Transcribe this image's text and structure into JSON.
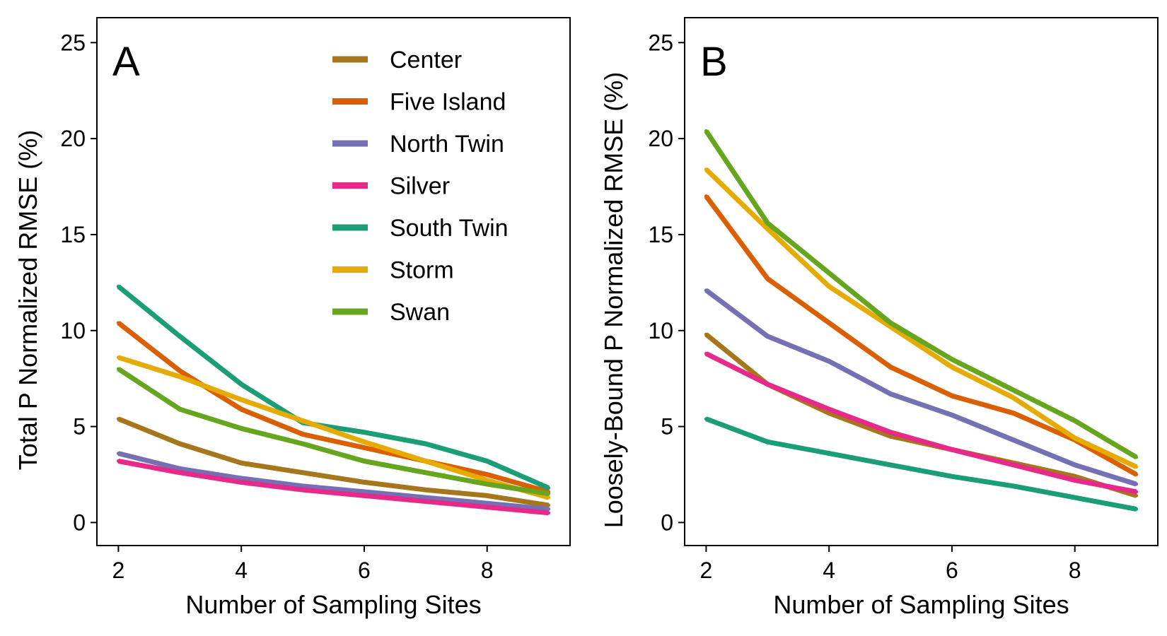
{
  "figure": {
    "legend_panel": "A",
    "legend_position": "top-right",
    "series_colors": {
      "Center": "#A6761D",
      "Five Island": "#D95F02",
      "North Twin": "#7570B3",
      "Silver": "#E7298A",
      "South Twin": "#1B9E77",
      "Storm": "#E6AB02",
      "Swan": "#66A61E"
    }
  },
  "chart_data": [
    {
      "type": "line",
      "panel_label": "A",
      "xlabel": "Number of Sampling Sites",
      "ylabel": "Total P Normalized RMSE (%)",
      "xlim": [
        1.65,
        9.35
      ],
      "ylim": [
        -1.2,
        26.3
      ],
      "xticks": [
        2,
        4,
        6,
        8
      ],
      "yticks": [
        0,
        5,
        10,
        15,
        20,
        25
      ],
      "grid": false,
      "x": [
        2,
        3,
        4,
        5,
        6,
        7,
        8,
        9
      ],
      "series": [
        {
          "name": "Center",
          "values": [
            5.4,
            4.1,
            3.1,
            2.6,
            2.1,
            1.7,
            1.4,
            0.9
          ]
        },
        {
          "name": "Five Island",
          "values": [
            10.4,
            7.9,
            5.9,
            4.6,
            3.9,
            3.2,
            2.5,
            1.6
          ]
        },
        {
          "name": "North Twin",
          "values": [
            3.6,
            2.8,
            2.3,
            1.9,
            1.6,
            1.3,
            1.0,
            0.7
          ]
        },
        {
          "name": "Silver",
          "values": [
            3.2,
            2.6,
            2.1,
            1.7,
            1.4,
            1.1,
            0.8,
            0.5
          ]
        },
        {
          "name": "South Twin",
          "values": [
            12.3,
            9.7,
            7.2,
            5.2,
            4.7,
            4.1,
            3.2,
            1.8
          ]
        },
        {
          "name": "Storm",
          "values": [
            8.6,
            7.6,
            6.4,
            5.3,
            4.2,
            3.2,
            2.2,
            1.3
          ]
        },
        {
          "name": "Swan",
          "values": [
            8.0,
            5.9,
            4.9,
            4.1,
            3.2,
            2.6,
            2.0,
            1.5
          ]
        }
      ]
    },
    {
      "type": "line",
      "panel_label": "B",
      "xlabel": "Number of Sampling Sites",
      "ylabel": "Loosely-Bound P Normalized RMSE (%)",
      "xlim": [
        1.65,
        9.35
      ],
      "ylim": [
        -1.2,
        26.3
      ],
      "xticks": [
        2,
        4,
        6,
        8
      ],
      "yticks": [
        0,
        5,
        10,
        15,
        20,
        25
      ],
      "grid": false,
      "x": [
        2,
        3,
        4,
        5,
        6,
        7,
        8,
        9
      ],
      "series": [
        {
          "name": "Center",
          "values": [
            9.8,
            7.2,
            5.7,
            4.5,
            3.8,
            3.1,
            2.4,
            1.4
          ]
        },
        {
          "name": "Five Island",
          "values": [
            17.0,
            12.7,
            10.4,
            8.1,
            6.6,
            5.7,
            4.3,
            2.5
          ]
        },
        {
          "name": "North Twin",
          "values": [
            12.1,
            9.7,
            8.4,
            6.7,
            5.6,
            4.3,
            3.0,
            2.0
          ]
        },
        {
          "name": "Silver",
          "values": [
            8.8,
            7.2,
            5.9,
            4.7,
            3.8,
            3.0,
            2.2,
            1.6
          ]
        },
        {
          "name": "South Twin",
          "values": [
            5.4,
            4.2,
            3.6,
            3.0,
            2.4,
            1.9,
            1.3,
            0.7
          ]
        },
        {
          "name": "Storm",
          "values": [
            18.4,
            15.3,
            12.3,
            10.2,
            8.1,
            6.5,
            4.4,
            2.9
          ]
        },
        {
          "name": "Swan",
          "values": [
            20.4,
            15.6,
            13.0,
            10.4,
            8.5,
            6.9,
            5.3,
            3.4
          ]
        }
      ]
    }
  ]
}
